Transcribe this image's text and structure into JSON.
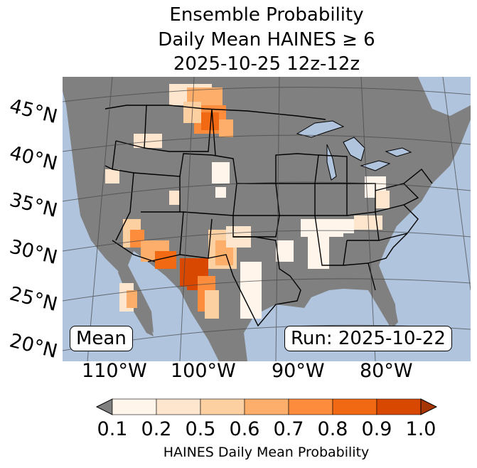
{
  "title": {
    "line1": "Ensemble Probability",
    "line2": "Daily Mean HAINES ≥ 6",
    "line3": "2025-10-25 12z-12z"
  },
  "lat_labels": [
    "45°N",
    "40°N",
    "35°N",
    "30°N",
    "25°N",
    "20°N"
  ],
  "lon_labels": [
    "110°W",
    "100°W",
    "90°W",
    "80°W"
  ],
  "mean_label": "Mean",
  "run_label": "Run: 2025-10-22",
  "colorbar": {
    "ticks": [
      "0.1",
      "0.2",
      "0.5",
      "0.6",
      "0.7",
      "0.8",
      "0.9",
      "1.0"
    ],
    "label": "HAINES Daily Mean Probability",
    "colors": [
      "#fff5eb",
      "#fee6ce",
      "#fdd0a2",
      "#fdae6b",
      "#fd8d3c",
      "#f16913",
      "#d94801"
    ],
    "under_color": "#808080",
    "over_color": "#a63603"
  },
  "map_colors": {
    "ocean": "#b0c4de",
    "land": "#808080",
    "borders": "#000000",
    "lakes": "#b0c4de"
  }
}
